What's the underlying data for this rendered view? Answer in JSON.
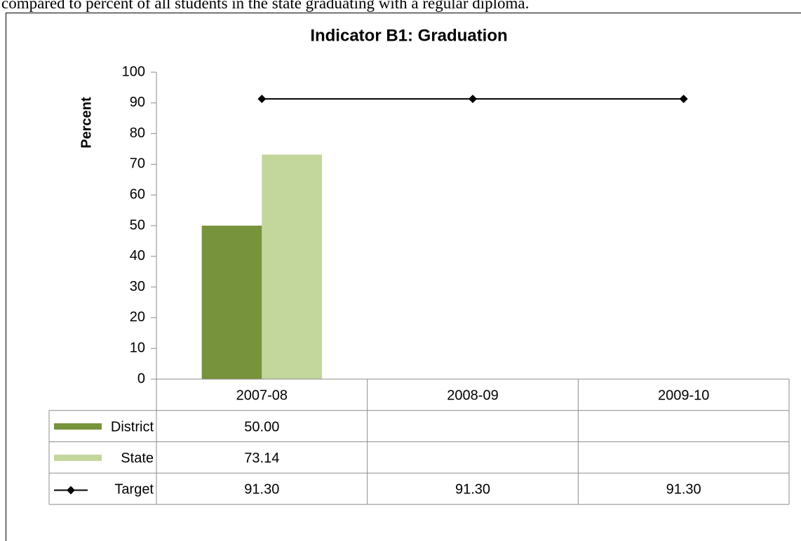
{
  "header_text": "compared to percent of all students in the state graduating with a regular diploma.",
  "chart_data": {
    "type": "bar",
    "title": "Indicator B1: Graduation",
    "y_label": "Percent",
    "categories": [
      "2007-08",
      "2008-09",
      "2009-10"
    ],
    "series": [
      {
        "name": "District",
        "type": "bar",
        "color": "#77933c",
        "values": [
          50,
          null,
          null
        ],
        "value_labels": [
          "50.00",
          null,
          null
        ]
      },
      {
        "name": "State",
        "type": "bar",
        "color": "#c3d69b",
        "values": [
          73.14,
          null,
          null
        ],
        "value_labels": [
          "73.14",
          null,
          null
        ]
      },
      {
        "name": "Target",
        "type": "line",
        "color": "#000000",
        "values": [
          91.3,
          91.3,
          91.3
        ],
        "value_labels": [
          "91.30",
          "91.30",
          "91.30"
        ]
      }
    ],
    "ylim": [
      0,
      100
    ],
    "yticks": [
      0,
      10,
      20,
      30,
      40,
      50,
      60,
      70,
      80,
      90,
      100
    ],
    "grid": false,
    "data_table": true
  }
}
